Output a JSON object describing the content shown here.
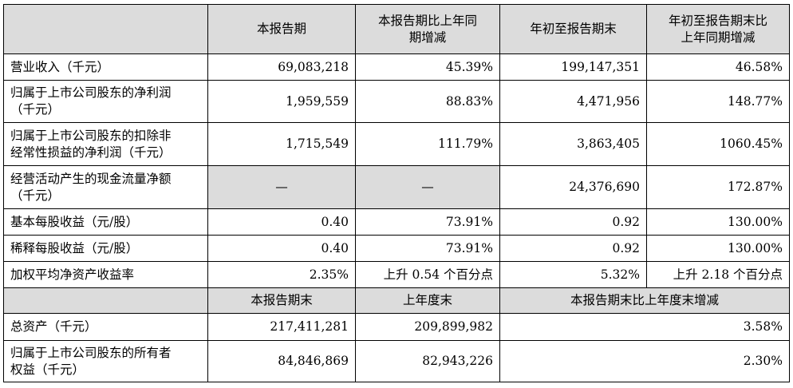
{
  "header": {
    "blank": "",
    "col1": "本报告期",
    "col2": "本报告期比上年同\n期增减",
    "col3": "年初至报告期末",
    "col4": "年初至报告期末比\n上年同期增减"
  },
  "rows": [
    {
      "label": "营业收入（千元）",
      "v1": "69,083,218",
      "v2": "45.39%",
      "v3": "199,147,351",
      "v4": "46.58%"
    },
    {
      "label": "归属于上市公司股东的净利润\n（千元）",
      "v1": "1,959,559",
      "v2": "88.83%",
      "v3": "4,471,956",
      "v4": "148.77%"
    },
    {
      "label": "归属于上市公司股东的扣除非\n经常性损益的净利润（千元）",
      "v1": "1,715,549",
      "v2": "111.79%",
      "v3": "3,863,405",
      "v4": "1060.45%"
    },
    {
      "label": "经营活动产生的现金流量净额\n（千元）",
      "v1": "—",
      "v2": "—",
      "v3": "24,376,690",
      "v4": "172.87%"
    },
    {
      "label": "基本每股收益（元/股）",
      "v1": "0.40",
      "v2": "73.91%",
      "v3": "0.92",
      "v4": "130.00%"
    },
    {
      "label": "稀释每股收益（元/股）",
      "v1": "0.40",
      "v2": "73.91%",
      "v3": "0.92",
      "v4": "130.00%"
    },
    {
      "label": "加权平均净资产收益率",
      "v1": "2.35%",
      "v2": "上升 0.54 个百分点",
      "v3": "5.32%",
      "v4": "上升 2.18 个百分点"
    }
  ],
  "header2": {
    "blank": "",
    "col1": "本报告期末",
    "col2": "上年度末",
    "col3": "本报告期末比上年度末增减"
  },
  "rows2": [
    {
      "label": "总资产（千元）",
      "v1": "217,411,281",
      "v2": "209,899,982",
      "v3": "3.58%"
    },
    {
      "label": "归属于上市公司股东的所有者\n权益（千元）",
      "v1": "84,846,869",
      "v2": "82,943,226",
      "v3": "2.30%"
    }
  ],
  "colors": {
    "header_fill": "#dcdcdc",
    "border": "#000000"
  }
}
